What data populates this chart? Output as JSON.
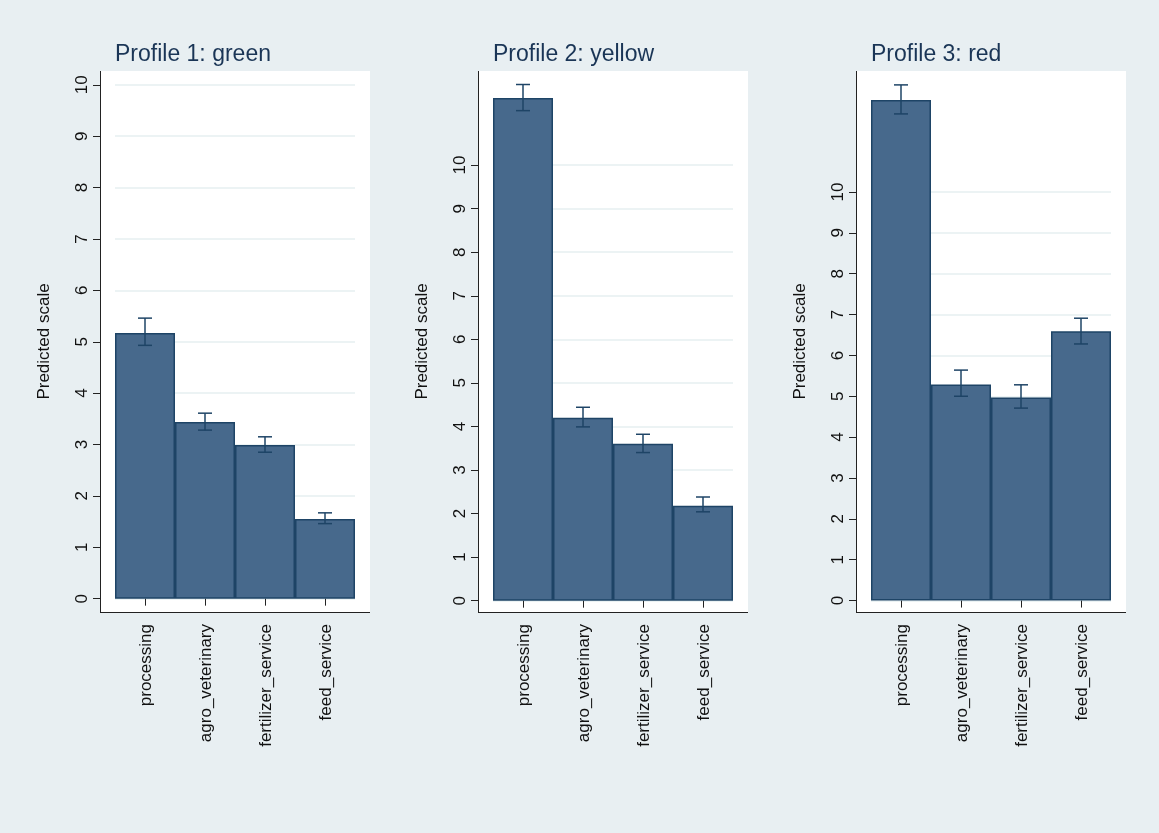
{
  "chart_data": [
    {
      "type": "bar",
      "title": "Profile 1: green",
      "ylabel": "Predicted scale",
      "categories": [
        "processing",
        "agro_veterinary",
        "fertilizer_service",
        "feed_service"
      ],
      "values": [
        5.17,
        3.44,
        2.99,
        1.55
      ],
      "errors": [
        [
          4.93,
          5.46
        ],
        [
          3.28,
          3.61
        ],
        [
          2.85,
          3.15
        ],
        [
          1.46,
          1.67
        ]
      ],
      "color": "#47698c",
      "ylim": [
        -0.26,
        10.27
      ],
      "yticks": [
        0,
        1,
        2,
        3,
        4,
        5,
        6,
        7,
        8,
        9,
        10
      ],
      "grid": "y"
    },
    {
      "type": "bar",
      "title": "Profile 2: yellow",
      "ylabel": "Predicted scale",
      "categories": [
        "processing",
        "agro_veterinary",
        "fertilizer_service",
        "feed_service"
      ],
      "values": [
        11.54,
        4.2,
        3.6,
        2.18
      ],
      "errors": [
        [
          11.25,
          11.85
        ],
        [
          3.99,
          4.44
        ],
        [
          3.4,
          3.82
        ],
        [
          2.04,
          2.38
        ]
      ],
      "color": "#47698c",
      "ylim": [
        -0.26,
        12.16
      ],
      "yticks": [
        0,
        1,
        2,
        3,
        4,
        5,
        6,
        7,
        8,
        9,
        10
      ],
      "grid": "y"
    },
    {
      "type": "bar",
      "title": "Profile 3: red",
      "ylabel": "Predicted scale",
      "categories": [
        "processing",
        "agro_veterinary",
        "fertilizer_service",
        "feed_service"
      ],
      "values": [
        12.25,
        5.29,
        4.97,
        6.59
      ],
      "errors": [
        [
          11.91,
          12.62
        ],
        [
          5.0,
          5.64
        ],
        [
          4.71,
          5.28
        ],
        [
          6.28,
          6.91
        ]
      ],
      "color": "#47698c",
      "ylim": [
        -0.28,
        12.96
      ],
      "yticks": [
        0,
        1,
        2,
        3,
        4,
        5,
        6,
        7,
        8,
        9,
        10
      ],
      "grid": "y"
    }
  ]
}
